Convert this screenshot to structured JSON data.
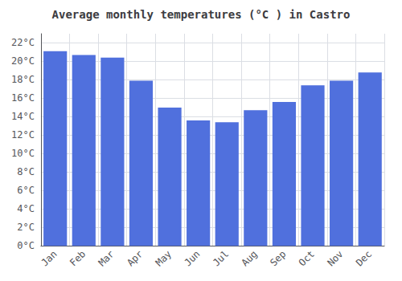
{
  "chart_data": {
    "type": "bar",
    "title": "Average monthly temperatures (°C ) in Castro",
    "categories": [
      "Jan",
      "Feb",
      "Mar",
      "Apr",
      "May",
      "Jun",
      "Jul",
      "Aug",
      "Sep",
      "Oct",
      "Nov",
      "Dec"
    ],
    "values": [
      21.1,
      20.7,
      20.4,
      17.9,
      15.0,
      13.6,
      13.4,
      14.7,
      15.6,
      17.4,
      17.9,
      18.8
    ],
    "ylim": [
      0,
      23
    ],
    "yticks": [
      {
        "value": 0,
        "label": "0°C"
      },
      {
        "value": 2,
        "label": "2°C"
      },
      {
        "value": 4,
        "label": "4°C"
      },
      {
        "value": 6,
        "label": "6°C"
      },
      {
        "value": 8,
        "label": "8°C"
      },
      {
        "value": 10,
        "label": "10°C"
      },
      {
        "value": 12,
        "label": "12°C"
      },
      {
        "value": 14,
        "label": "14°C"
      },
      {
        "value": 16,
        "label": "16°C"
      },
      {
        "value": 18,
        "label": "18°C"
      },
      {
        "value": 20,
        "label": "20°C"
      },
      {
        "value": 22,
        "label": "22°C"
      }
    ],
    "grid": true
  }
}
